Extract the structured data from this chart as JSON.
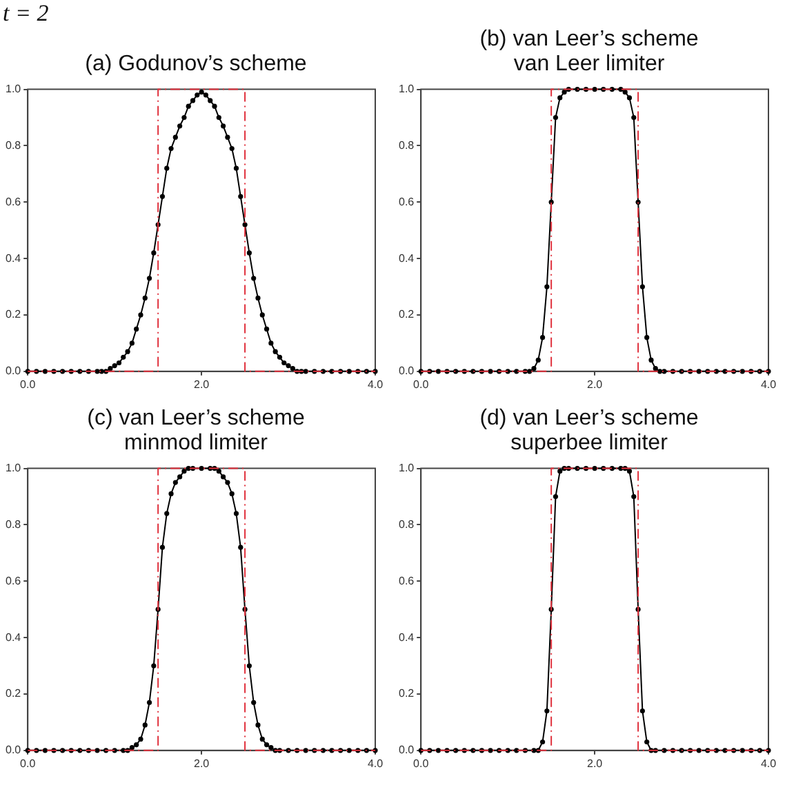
{
  "chart_data": [
    {
      "type": "line",
      "title": "(a) Godunov’s scheme",
      "annotations": [
        "t = 2"
      ],
      "xlim": [
        0,
        4
      ],
      "ylim": [
        0,
        1
      ],
      "xticks": [
        {
          "value": 0,
          "label": "0.0"
        },
        {
          "value": 2,
          "label": "2.0"
        },
        {
          "value": 4,
          "label": "4.0"
        }
      ],
      "yticks": [
        {
          "value": 0,
          "label": "0.0"
        },
        {
          "value": 0.2,
          "label": "0.2"
        },
        {
          "value": 0.4,
          "label": "0.4"
        },
        {
          "value": 0.6,
          "label": "0.6"
        },
        {
          "value": 0.8,
          "label": "0.8"
        },
        {
          "value": 1,
          "label": "1.0"
        }
      ],
      "grid": false,
      "legend": false,
      "series": [
        {
          "color": "#e0303c",
          "marker": "none",
          "line_style": "dashed",
          "x": [
            0,
            1.5,
            1.5,
            2.5,
            2.5,
            4
          ],
          "values": [
            0,
            0,
            1,
            1,
            0,
            0
          ]
        },
        {
          "color": "#000000",
          "marker": "circle",
          "line_style": "solid",
          "x": [
            0,
            0.1,
            0.2,
            0.3,
            0.4,
            0.5,
            0.6,
            0.7,
            0.8,
            0.85,
            0.9,
            0.95,
            1.0,
            1.05,
            1.1,
            1.15,
            1.2,
            1.25,
            1.3,
            1.35,
            1.4,
            1.45,
            1.5,
            1.55,
            1.6,
            1.65,
            1.7,
            1.75,
            1.8,
            1.85,
            1.9,
            1.95,
            2.0,
            2.05,
            2.1,
            2.15,
            2.2,
            2.25,
            2.3,
            2.35,
            2.4,
            2.45,
            2.5,
            2.55,
            2.6,
            2.65,
            2.7,
            2.75,
            2.8,
            2.85,
            2.9,
            2.95,
            3.0,
            3.05,
            3.1,
            3.15,
            3.2,
            3.3,
            3.4,
            3.5,
            3.6,
            3.7,
            3.8,
            3.9,
            4.0
          ],
          "values": [
            0,
            0,
            0,
            0,
            0,
            0,
            0,
            0,
            0,
            0,
            0,
            0.01,
            0.02,
            0.03,
            0.05,
            0.07,
            0.1,
            0.15,
            0.2,
            0.26,
            0.33,
            0.42,
            0.52,
            0.62,
            0.72,
            0.79,
            0.83,
            0.87,
            0.9,
            0.94,
            0.96,
            0.98,
            0.99,
            0.98,
            0.96,
            0.94,
            0.9,
            0.87,
            0.83,
            0.79,
            0.72,
            0.62,
            0.52,
            0.42,
            0.33,
            0.26,
            0.2,
            0.15,
            0.1,
            0.07,
            0.05,
            0.03,
            0.02,
            0.01,
            0,
            0,
            0,
            0,
            0,
            0,
            0,
            0,
            0,
            0,
            0
          ]
        }
      ]
    },
    {
      "type": "line",
      "title": "(b) van Leer’s scheme\nvan Leer limiter",
      "xlim": [
        0,
        4
      ],
      "ylim": [
        0,
        1
      ],
      "xticks": [
        {
          "value": 0,
          "label": "0.0"
        },
        {
          "value": 2,
          "label": "2.0"
        },
        {
          "value": 4,
          "label": "4.0"
        }
      ],
      "yticks": [
        {
          "value": 0,
          "label": "0.0"
        },
        {
          "value": 0.2,
          "label": "0.2"
        },
        {
          "value": 0.4,
          "label": "0.4"
        },
        {
          "value": 0.6,
          "label": "0.6"
        },
        {
          "value": 0.8,
          "label": "0.8"
        },
        {
          "value": 1,
          "label": "1.0"
        }
      ],
      "grid": false,
      "legend": false,
      "series": [
        {
          "color": "#e0303c",
          "marker": "none",
          "line_style": "dashed",
          "x": [
            0,
            1.5,
            1.5,
            2.5,
            2.5,
            4
          ],
          "values": [
            0,
            0,
            1,
            1,
            0,
            0
          ]
        },
        {
          "color": "#000000",
          "marker": "circle",
          "line_style": "solid",
          "x": [
            0,
            0.1,
            0.2,
            0.3,
            0.4,
            0.5,
            0.6,
            0.7,
            0.8,
            0.9,
            1.0,
            1.1,
            1.2,
            1.25,
            1.3,
            1.35,
            1.4,
            1.45,
            1.5,
            1.55,
            1.6,
            1.65,
            1.7,
            1.8,
            1.9,
            2.0,
            2.1,
            2.2,
            2.3,
            2.35,
            2.4,
            2.45,
            2.5,
            2.55,
            2.6,
            2.65,
            2.7,
            2.75,
            2.8,
            2.9,
            3.0,
            3.1,
            3.2,
            3.3,
            3.4,
            3.5,
            3.6,
            3.7,
            3.8,
            3.9,
            4.0
          ],
          "values": [
            0,
            0,
            0,
            0,
            0,
            0,
            0,
            0,
            0,
            0,
            0,
            0,
            0,
            0,
            0.01,
            0.04,
            0.12,
            0.3,
            0.6,
            0.9,
            0.97,
            0.99,
            1,
            1,
            1,
            1,
            1,
            1,
            1,
            0.99,
            0.97,
            0.9,
            0.6,
            0.3,
            0.12,
            0.04,
            0.01,
            0,
            0,
            0,
            0,
            0,
            0,
            0,
            0,
            0,
            0,
            0,
            0,
            0,
            0
          ]
        }
      ]
    },
    {
      "type": "line",
      "title": "(c) van Leer’s scheme\nminmod limiter",
      "xlim": [
        0,
        4
      ],
      "ylim": [
        0,
        1
      ],
      "xticks": [
        {
          "value": 0,
          "label": "0.0"
        },
        {
          "value": 2,
          "label": "2.0"
        },
        {
          "value": 4,
          "label": "4.0"
        }
      ],
      "yticks": [
        {
          "value": 0,
          "label": "0.0"
        },
        {
          "value": 0.2,
          "label": "0.2"
        },
        {
          "value": 0.4,
          "label": "0.4"
        },
        {
          "value": 0.6,
          "label": "0.6"
        },
        {
          "value": 0.8,
          "label": "0.8"
        },
        {
          "value": 1,
          "label": "1.0"
        }
      ],
      "grid": false,
      "legend": false,
      "series": [
        {
          "color": "#e0303c",
          "marker": "none",
          "line_style": "dashed",
          "x": [
            0,
            1.5,
            1.5,
            2.5,
            2.5,
            4
          ],
          "values": [
            0,
            0,
            1,
            1,
            0,
            0
          ]
        },
        {
          "color": "#000000",
          "marker": "circle",
          "line_style": "solid",
          "x": [
            0,
            0.1,
            0.2,
            0.3,
            0.4,
            0.5,
            0.6,
            0.7,
            0.8,
            0.9,
            1.0,
            1.1,
            1.15,
            1.2,
            1.25,
            1.3,
            1.35,
            1.4,
            1.45,
            1.5,
            1.55,
            1.6,
            1.65,
            1.7,
            1.75,
            1.8,
            1.85,
            1.9,
            2.0,
            2.1,
            2.15,
            2.2,
            2.25,
            2.3,
            2.35,
            2.4,
            2.45,
            2.5,
            2.55,
            2.6,
            2.65,
            2.7,
            2.75,
            2.8,
            2.85,
            2.9,
            3.0,
            3.1,
            3.2,
            3.3,
            3.4,
            3.5,
            3.6,
            3.7,
            3.8,
            3.9,
            4.0
          ],
          "values": [
            0,
            0,
            0,
            0,
            0,
            0,
            0,
            0,
            0,
            0,
            0,
            0,
            0,
            0.01,
            0.02,
            0.04,
            0.09,
            0.17,
            0.3,
            0.5,
            0.72,
            0.84,
            0.91,
            0.95,
            0.97,
            0.99,
            1,
            1,
            1,
            1,
            1,
            0.99,
            0.97,
            0.95,
            0.91,
            0.84,
            0.72,
            0.5,
            0.3,
            0.17,
            0.09,
            0.04,
            0.02,
            0.01,
            0,
            0,
            0,
            0,
            0,
            0,
            0,
            0,
            0,
            0,
            0,
            0,
            0
          ]
        }
      ]
    },
    {
      "type": "line",
      "title": "(d) van Leer’s scheme\nsuperbee limiter",
      "xlim": [
        0,
        4
      ],
      "ylim": [
        0,
        1
      ],
      "xticks": [
        {
          "value": 0,
          "label": "0.0"
        },
        {
          "value": 2,
          "label": "2.0"
        },
        {
          "value": 4,
          "label": "4.0"
        }
      ],
      "yticks": [
        {
          "value": 0,
          "label": "0.0"
        },
        {
          "value": 0.2,
          "label": "0.2"
        },
        {
          "value": 0.4,
          "label": "0.4"
        },
        {
          "value": 0.6,
          "label": "0.6"
        },
        {
          "value": 0.8,
          "label": "0.8"
        },
        {
          "value": 1,
          "label": "1.0"
        }
      ],
      "grid": false,
      "legend": false,
      "series": [
        {
          "color": "#e0303c",
          "marker": "none",
          "line_style": "dashed",
          "x": [
            0,
            1.5,
            1.5,
            2.5,
            2.5,
            4
          ],
          "values": [
            0,
            0,
            1,
            1,
            0,
            0
          ]
        },
        {
          "color": "#000000",
          "marker": "circle",
          "line_style": "solid",
          "x": [
            0,
            0.1,
            0.2,
            0.3,
            0.4,
            0.5,
            0.6,
            0.7,
            0.8,
            0.9,
            1.0,
            1.1,
            1.2,
            1.3,
            1.35,
            1.4,
            1.45,
            1.5,
            1.55,
            1.6,
            1.65,
            1.7,
            1.8,
            1.9,
            2.0,
            2.1,
            2.2,
            2.3,
            2.35,
            2.4,
            2.45,
            2.5,
            2.55,
            2.6,
            2.65,
            2.7,
            2.8,
            2.9,
            3.0,
            3.1,
            3.2,
            3.3,
            3.4,
            3.5,
            3.6,
            3.7,
            3.8,
            3.9,
            4.0
          ],
          "values": [
            0,
            0,
            0,
            0,
            0,
            0,
            0,
            0,
            0,
            0,
            0,
            0,
            0,
            0,
            0,
            0.03,
            0.14,
            0.5,
            0.9,
            0.99,
            1,
            1,
            1,
            1,
            1,
            1,
            1,
            1,
            1,
            0.99,
            0.9,
            0.5,
            0.14,
            0.03,
            0,
            0,
            0,
            0,
            0,
            0,
            0,
            0,
            0,
            0,
            0,
            0,
            0,
            0,
            0
          ]
        }
      ]
    }
  ]
}
